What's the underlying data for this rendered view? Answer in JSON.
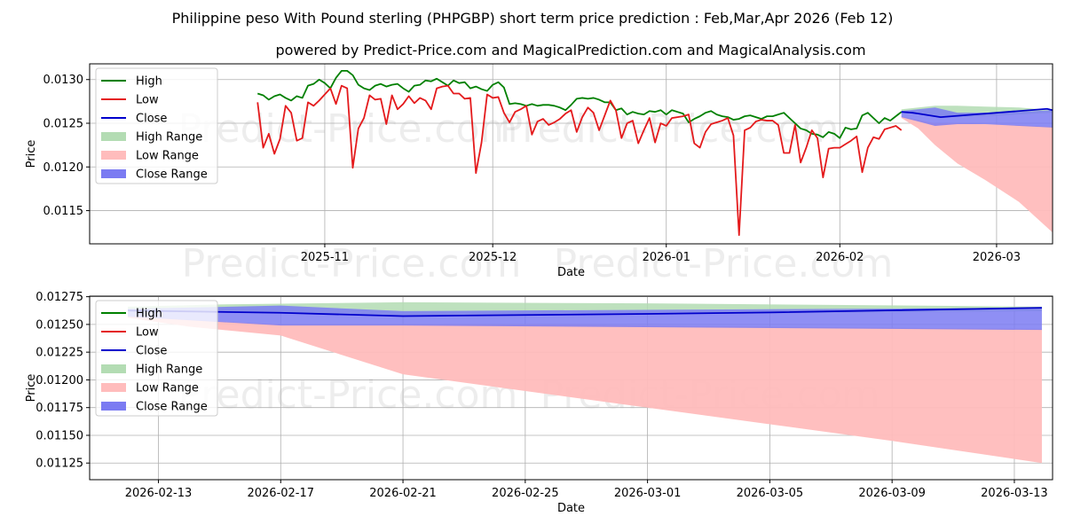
{
  "header": {
    "title": "Philippine peso With Pound sterling (PHPGBP) short term price prediction : Feb,Mar,Apr 2026 (Feb 12)",
    "subtitle": "powered by Predict-Price.com and MagicalPrediction.com and MagicalAnalysis.com"
  },
  "watermark": "Predict-Price.com",
  "colors": {
    "high": "#008000",
    "low": "#e41a1c",
    "close": "#0000cc",
    "high_range": "#b3dcb3",
    "low_range": "#ffbcbc",
    "close_range": "#7b7bf2",
    "grid": "#b0b0b0"
  },
  "chart_data": [
    {
      "type": "line",
      "title": "Philippine peso With Pound sterling (PHPGBP) short term price prediction : Feb,Mar,Apr 2026 (Feb 12)",
      "xlabel": "Date",
      "ylabel": "Price",
      "x_domain_days": [
        -42,
        130
      ],
      "ylim": [
        0.01112,
        0.01318
      ],
      "xticks": [
        {
          "label": "2025-11",
          "day": 0
        },
        {
          "label": "2025-12",
          "day": 30
        },
        {
          "label": "2026-01",
          "day": 61
        },
        {
          "label": "2026-02",
          "day": 92
        },
        {
          "label": "2026-03",
          "day": 120
        }
      ],
      "yticks": [
        0.0115,
        0.012,
        0.0125,
        0.013
      ],
      "ytick_labels": [
        "0.0115",
        "0.0120",
        "0.0125",
        "0.0130"
      ],
      "legend": {
        "position": "top-left",
        "entries": [
          "High",
          "Low",
          "Close",
          "High Range",
          "Low Range",
          "Close Range"
        ]
      },
      "series": [
        {
          "name": "High",
          "x_days": [
            -12,
            -11,
            -10,
            -9,
            -8,
            -7,
            -6,
            -5,
            -4,
            -3,
            -2,
            -1,
            0,
            1,
            2,
            3,
            4,
            5,
            6,
            7,
            8,
            9,
            10,
            11,
            12,
            13,
            14,
            15,
            16,
            17,
            18,
            19,
            20,
            21,
            22,
            23,
            24,
            25,
            26,
            27,
            28,
            29,
            30,
            31,
            32,
            33,
            34,
            35,
            36,
            37,
            38,
            39,
            40,
            41,
            42,
            43,
            44,
            45,
            46,
            47,
            48,
            49,
            50,
            51,
            52,
            53,
            54,
            55,
            56,
            57,
            58,
            59,
            60,
            61,
            62,
            63,
            64,
            65,
            66,
            67,
            68,
            69,
            70,
            71,
            72,
            73,
            74,
            75,
            76,
            77,
            78,
            79,
            80,
            81,
            82,
            83,
            84,
            85,
            86,
            87,
            88,
            89,
            90,
            91,
            92,
            93,
            94,
            95,
            96,
            97,
            98,
            99,
            100,
            101,
            102,
            103
          ],
          "values": [
            0.01284,
            0.01282,
            0.01277,
            0.01281,
            0.01283,
            0.01279,
            0.01276,
            0.01281,
            0.01279,
            0.01293,
            0.01295,
            0.013,
            0.01296,
            0.0129,
            0.01302,
            0.0131,
            0.0131,
            0.01305,
            0.01294,
            0.0129,
            0.01288,
            0.01293,
            0.01295,
            0.01292,
            0.01294,
            0.01295,
            0.0129,
            0.01286,
            0.01293,
            0.01294,
            0.01299,
            0.01298,
            0.01301,
            0.01297,
            0.01293,
            0.01299,
            0.01296,
            0.01297,
            0.0129,
            0.01292,
            0.01289,
            0.01287,
            0.01294,
            0.01297,
            0.01291,
            0.01272,
            0.01273,
            0.01272,
            0.0127,
            0.01272,
            0.0127,
            0.01271,
            0.01271,
            0.0127,
            0.01268,
            0.01265,
            0.01271,
            0.01278,
            0.01279,
            0.01278,
            0.01279,
            0.01277,
            0.01274,
            0.01274,
            0.01265,
            0.01267,
            0.0126,
            0.01263,
            0.01261,
            0.0126,
            0.01264,
            0.01263,
            0.01265,
            0.0126,
            0.01265,
            0.01263,
            0.01261,
            0.01251,
            0.01255,
            0.01258,
            0.01262,
            0.01264,
            0.0126,
            0.01258,
            0.01257,
            0.01254,
            0.01255,
            0.01258,
            0.01259,
            0.01257,
            0.01255,
            0.01258,
            0.01258,
            0.0126,
            0.01262,
            0.01256,
            0.0125,
            0.01244,
            0.01242,
            0.01238,
            0.01237,
            0.01234,
            0.0124,
            0.01238,
            0.01233,
            0.01245,
            0.01243,
            0.01244,
            0.01259,
            0.01262,
            0.01256,
            0.0125,
            0.01256,
            0.01253,
            0.01258,
            0.01263
          ]
        },
        {
          "name": "Low",
          "x_days": [
            -12,
            -11,
            -10,
            -9,
            -8,
            -7,
            -6,
            -5,
            -4,
            -3,
            -2,
            -1,
            0,
            1,
            2,
            3,
            4,
            5,
            6,
            7,
            8,
            9,
            10,
            11,
            12,
            13,
            14,
            15,
            16,
            17,
            18,
            19,
            20,
            21,
            22,
            23,
            24,
            25,
            26,
            27,
            28,
            29,
            30,
            31,
            32,
            33,
            34,
            35,
            36,
            37,
            38,
            39,
            40,
            41,
            42,
            43,
            44,
            45,
            46,
            47,
            48,
            49,
            50,
            51,
            52,
            53,
            54,
            55,
            56,
            57,
            58,
            59,
            60,
            61,
            62,
            63,
            64,
            65,
            66,
            67,
            68,
            69,
            70,
            71,
            72,
            73,
            74,
            75,
            76,
            77,
            78,
            79,
            80,
            81,
            82,
            83,
            84,
            85,
            86,
            87,
            88,
            89,
            90,
            91,
            92,
            93,
            94,
            95,
            96,
            97,
            98,
            99,
            100,
            101,
            102,
            103
          ],
          "values": [
            0.01274,
            0.01222,
            0.01238,
            0.01215,
            0.01232,
            0.0127,
            0.01262,
            0.0123,
            0.01233,
            0.01274,
            0.0127,
            0.01276,
            0.01283,
            0.0129,
            0.01272,
            0.01293,
            0.0129,
            0.01199,
            0.01244,
            0.01256,
            0.01282,
            0.01277,
            0.01278,
            0.01249,
            0.01282,
            0.01266,
            0.01272,
            0.01281,
            0.01273,
            0.01279,
            0.01276,
            0.01266,
            0.0129,
            0.01292,
            0.01293,
            0.01284,
            0.01284,
            0.01278,
            0.01279,
            0.01193,
            0.01228,
            0.01283,
            0.01279,
            0.0128,
            0.01262,
            0.01251,
            0.01263,
            0.01266,
            0.0127,
            0.01237,
            0.01252,
            0.01255,
            0.01248,
            0.01251,
            0.01255,
            0.01261,
            0.01265,
            0.0124,
            0.01257,
            0.01268,
            0.01262,
            0.01242,
            0.01259,
            0.01276,
            0.01265,
            0.01233,
            0.0125,
            0.01253,
            0.01227,
            0.01242,
            0.01256,
            0.01228,
            0.0125,
            0.01247,
            0.01256,
            0.01257,
            0.01258,
            0.0126,
            0.01227,
            0.01222,
            0.0124,
            0.01249,
            0.01251,
            0.01253,
            0.01256,
            0.01236,
            0.01122,
            0.01242,
            0.01245,
            0.01252,
            0.01254,
            0.01253,
            0.01253,
            0.01248,
            0.01216,
            0.01216,
            0.01248,
            0.01205,
            0.01222,
            0.01242,
            0.01233,
            0.01188,
            0.01221,
            0.01222,
            0.01222,
            0.01226,
            0.0123,
            0.01235,
            0.01194,
            0.01222,
            0.01234,
            0.01232,
            0.01243,
            0.01245,
            0.01247,
            0.01242
          ]
        },
        {
          "name": "Close",
          "x_days": [
            103,
            104,
            105,
            106,
            107,
            108,
            109,
            110,
            111,
            112,
            113,
            114,
            115,
            116,
            117,
            118,
            119,
            120,
            121,
            122,
            123,
            124,
            125,
            126,
            127,
            128,
            129,
            130
          ],
          "values": [
            0.01263,
            0.012625,
            0.01262,
            0.01261,
            0.0126,
            0.01259,
            0.01258,
            0.01257,
            0.012575,
            0.01258,
            0.012585,
            0.01259,
            0.012595,
            0.0126,
            0.012605,
            0.01261,
            0.012615,
            0.01262,
            0.012625,
            0.01263,
            0.012635,
            0.01264,
            0.012645,
            0.01265,
            0.012655,
            0.01266,
            0.012665,
            0.01265
          ]
        }
      ],
      "ranges": [
        {
          "name": "High Range",
          "x_days": [
            103,
            106,
            109,
            113,
            118,
            124,
            130
          ],
          "upper": [
            0.01266,
            0.01268,
            0.0127,
            0.0127,
            0.01269,
            0.01268,
            0.01265
          ],
          "lower": [
            0.01263,
            0.01262,
            0.01258,
            0.01257,
            0.01258,
            0.0126,
            0.01262
          ]
        },
        {
          "name": "Low Range",
          "x_days": [
            103,
            106,
            109,
            113,
            118,
            124,
            130
          ],
          "upper": [
            0.01258,
            0.01254,
            0.0125,
            0.0125,
            0.01249,
            0.01248,
            0.01246
          ],
          "lower": [
            0.01256,
            0.01244,
            0.01225,
            0.01204,
            0.01185,
            0.0116,
            0.01125
          ]
        },
        {
          "name": "Close Range",
          "x_days": [
            103,
            106,
            109,
            113,
            118,
            124,
            130
          ],
          "upper": [
            0.01264,
            0.01266,
            0.01268,
            0.01262,
            0.01262,
            0.01263,
            0.01265
          ],
          "lower": [
            0.01257,
            0.01252,
            0.01247,
            0.01249,
            0.01249,
            0.01247,
            0.01245
          ]
        }
      ]
    },
    {
      "type": "line",
      "xlabel": "Date",
      "ylabel": "Price",
      "x_domain_days": [
        -1.25,
        30.25
      ],
      "ylim": [
        0.0111,
        0.012755
      ],
      "xticks": [
        {
          "label": "2026-02-13",
          "day": 1
        },
        {
          "label": "2026-02-17",
          "day": 5
        },
        {
          "label": "2026-02-21",
          "day": 9
        },
        {
          "label": "2026-02-25",
          "day": 13
        },
        {
          "label": "2026-03-01",
          "day": 17
        },
        {
          "label": "2026-03-05",
          "day": 21
        },
        {
          "label": "2026-03-09",
          "day": 25
        },
        {
          "label": "2026-03-13",
          "day": 29
        }
      ],
      "yticks": [
        0.01125,
        0.0115,
        0.01175,
        0.012,
        0.01225,
        0.0125,
        0.01275
      ],
      "ytick_labels": [
        "0.01125",
        "0.01150",
        "0.01175",
        "0.01200",
        "0.01225",
        "0.01250",
        "0.01275"
      ],
      "legend": {
        "position": "top-left",
        "entries": [
          "High",
          "Low",
          "Close",
          "High Range",
          "Low Range",
          "Close Range"
        ]
      },
      "series": [
        {
          "name": "Close",
          "x_days": [
            0,
            5,
            9,
            13,
            17,
            21,
            25,
            29.9
          ],
          "values": [
            0.012625,
            0.012605,
            0.012575,
            0.012585,
            0.012595,
            0.012608,
            0.012627,
            0.01265
          ]
        }
      ],
      "ranges": [
        {
          "name": "High Range",
          "x_days": [
            0,
            3,
            9,
            17,
            29.9
          ],
          "upper": [
            0.01266,
            0.01268,
            0.0127,
            0.01269,
            0.01266
          ],
          "lower": [
            0.01263,
            0.01262,
            0.01258,
            0.01259,
            0.01262
          ]
        },
        {
          "name": "Low Range",
          "x_days": [
            0,
            2,
            5,
            9,
            13,
            17,
            21,
            25,
            29.9
          ],
          "upper": [
            0.01258,
            0.01254,
            0.0125,
            0.0125,
            0.0125,
            0.01249,
            0.01248,
            0.01247,
            0.01246
          ],
          "lower": [
            0.01256,
            0.01248,
            0.0124,
            0.01205,
            0.0119,
            0.01175,
            0.0116,
            0.01145,
            0.01125
          ]
        },
        {
          "name": "Close Range",
          "x_days": [
            0,
            5,
            9,
            29.9
          ],
          "upper": [
            0.01264,
            0.01267,
            0.01262,
            0.01265
          ],
          "lower": [
            0.01257,
            0.01249,
            0.01249,
            0.01245
          ]
        }
      ]
    }
  ]
}
